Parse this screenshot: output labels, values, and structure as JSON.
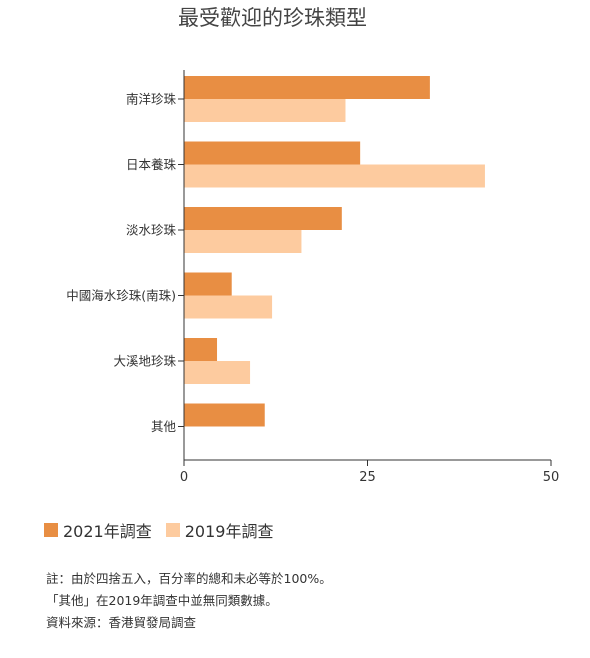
{
  "chart_data": {
    "type": "bar",
    "orientation": "horizontal",
    "title": "最受歡迎的珍珠類型",
    "categories": [
      "南洋珍珠",
      "日本養珠",
      "淡水珍珠",
      "中國海水珍珠(南珠)",
      "大溪地珍珠",
      "其他"
    ],
    "series": [
      {
        "name": "2021年調查",
        "color": "#E88E43",
        "values": [
          33.5,
          24,
          21.5,
          6.5,
          4.5,
          11
        ]
      },
      {
        "name": "2019年調查",
        "color": "#FDCB9F",
        "values": [
          22,
          41,
          16,
          12,
          9,
          null
        ]
      }
    ],
    "xlim": [
      0,
      50
    ],
    "xticks": [
      "0",
      "25",
      "50"
    ],
    "grid": false,
    "legend_position": "bottom-left"
  },
  "notes": [
    "註：由於四捨五入，百分率的總和未必等於100%。",
    "「其他」在2019年調查中並無同類數據。",
    "資料來源：香港貿發局調查"
  ]
}
